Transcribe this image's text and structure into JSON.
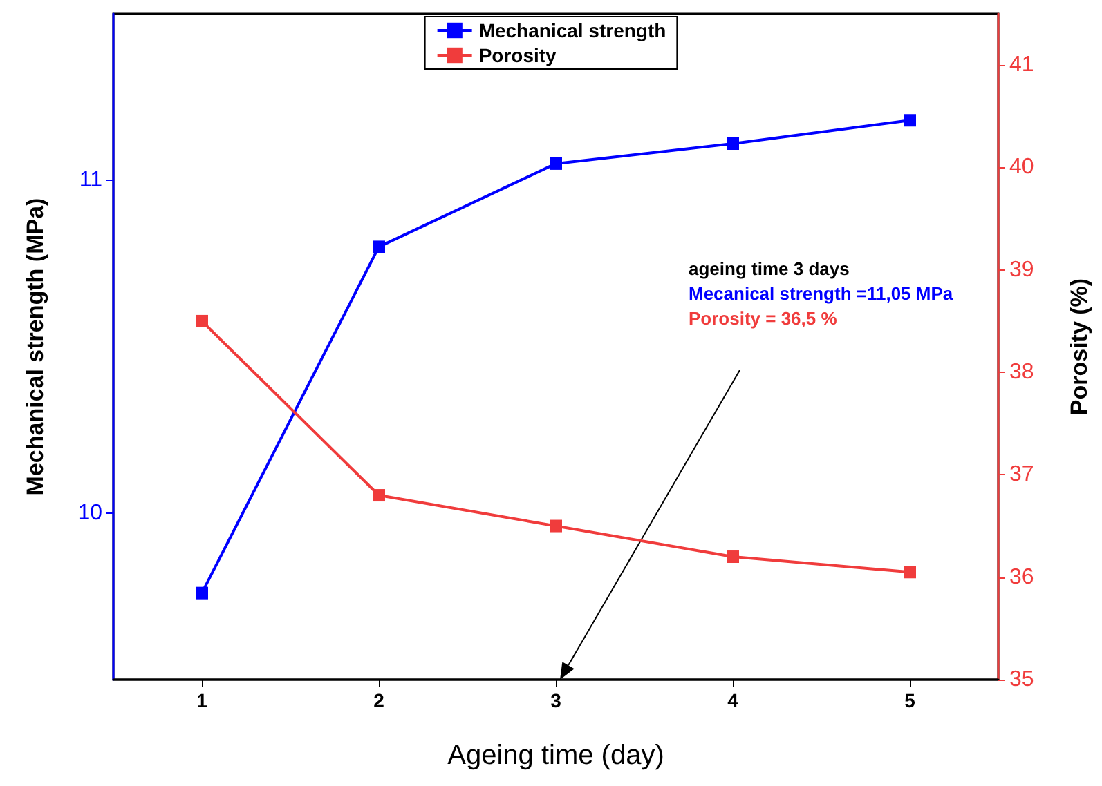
{
  "chart_data": {
    "type": "line",
    "xlabel": "Ageing time (day)",
    "ylabel": "Mechanical strength (MPa)",
    "y2label": "Porosity (%)",
    "x": [
      1,
      2,
      3,
      4,
      5
    ],
    "series": [
      {
        "name": "Mechanical strength",
        "color": "#0000ff",
        "values": [
          9.76,
          10.8,
          11.05,
          11.11,
          11.18
        ]
      },
      {
        "name": "Porosity",
        "color": "#f03c3c",
        "axis": "y2",
        "values": [
          38.5,
          36.8,
          36.5,
          36.2,
          36.05
        ]
      }
    ],
    "xlim": [
      0.5,
      5.5
    ],
    "xticks": [
      1,
      2,
      3,
      4,
      5
    ],
    "ylim": [
      9.5,
      11.5
    ],
    "yticks": [
      10,
      11
    ],
    "y2lim": [
      35,
      41.5
    ],
    "y2ticks": [
      35,
      36,
      37,
      38,
      39,
      40,
      41
    ],
    "annotations": [
      "ageing time 3 days",
      "Mecanical strength =11,05 MPa",
      "Porosity = 36,5 %"
    ],
    "legend": "top",
    "marker": "square",
    "line_style": "solid",
    "grid": false
  }
}
